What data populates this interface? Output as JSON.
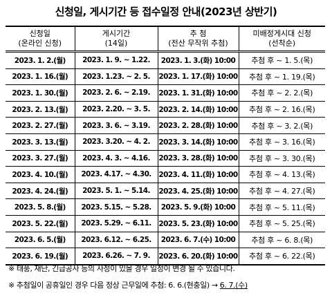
{
  "title": "신청일, 게시기간 등 접수일정 안내(2023년 상반기)",
  "table": {
    "headers": [
      [
        "신청일",
        "(온라인 신청)"
      ],
      [
        "게시기간",
        "(14일)"
      ],
      [
        "추 첨",
        "(전산 무작위 추첨)"
      ],
      [
        "미배정게시대 신청",
        "(선착순)"
      ]
    ],
    "rows": [
      [
        "2023. 1. 2.(월)",
        "2023. 1. 9. ~ 1.22.",
        "2023. 1. 3.(화) 10:00",
        "추첨 후 ~ 1. 5.(목)"
      ],
      [
        "2023. 1. 16.(월)",
        "2023. 1.23. ~ 2. 5.",
        "2023. 1. 17.(화) 10:00",
        "추첨 후 ~ 1. 19.(목)"
      ],
      [
        "2023. 1. 30.(월)",
        "2023. 2. 6. ~ 2.19.",
        "2023. 1. 31.(화) 10:00",
        "추첨 후 ~ 2. 2.(목)"
      ],
      [
        "2023. 2. 13.(월)",
        "2023. 2.20. ~ 3. 5.",
        "2023. 2. 14.(화) 10:00",
        "추첨 후 ~ 2. 16.(목)"
      ],
      [
        "2023. 2. 27.(월)",
        "2023. 3. 6. ~ 3.19.",
        "2023. 2. 28.(화) 10:00",
        "추첨 후 ~ 3. 2.(목)"
      ],
      [
        "2023. 3. 13.(월)",
        "2023. 3.20. ~ 4. 2.",
        "2023. 3. 14.(화) 10:00",
        "추첨 후 ~ 3. 16.(목)"
      ],
      [
        "2023. 3. 27.(월)",
        "2023. 4. 3. ~ 4.16.",
        "2023. 3. 28.(화) 10:00",
        "추첨 후 ~ 3. 30.(목)"
      ],
      [
        "2023. 4. 10.(월)",
        "2023. 4.17. ~ 4.30.",
        "2023. 4. 11.(화) 10:00",
        "추첨 후 ~ 4. 13.(목)"
      ],
      [
        "2023. 4. 24.(월)",
        "2023. 5. 1. ~ 5.14.",
        "2023. 4. 25.(화) 10:00",
        "추첨 후 ~ 4. 27.(목)"
      ],
      [
        "2023. 5. 8.(월)",
        "2023. 5.15. ~ 5.28.",
        "2023. 5. 9.(화) 10:00",
        "추첨 후 ~ 5. 11.(목)"
      ],
      [
        "2023. 5. 22.(월)",
        "2023. 5.29. ~ 6.11.",
        "2023. 5. 23.(화) 10:00",
        "추첨 후 ~ 5. 25.(목)"
      ],
      [
        "2023. 6. 5.(월)",
        "2023. 6.12. ~ 6.25.",
        "2023. 6. 7.(수) 10:00",
        "추첨 후 ~ 6. 8.(목)"
      ],
      [
        "2023. 6. 19.(월)",
        "2023. 6.26. ~ 7. 9.",
        "2023. 6. 20.(화) 10:00",
        "추첨 후 ~ 6. 22.(목)"
      ]
    ]
  },
  "notes": [
    {
      "text": "※ 태풍, 재난, 긴급공사 등의 사정이 있을 경우 일정이 변경 될 수 있습니다."
    },
    {
      "text": "※ 추첨일이 공휴일인 경우 다음 정상 근무일에 추첨: 6. 6.(현충일) →",
      "underlined": "6. 7.(수)"
    }
  ]
}
